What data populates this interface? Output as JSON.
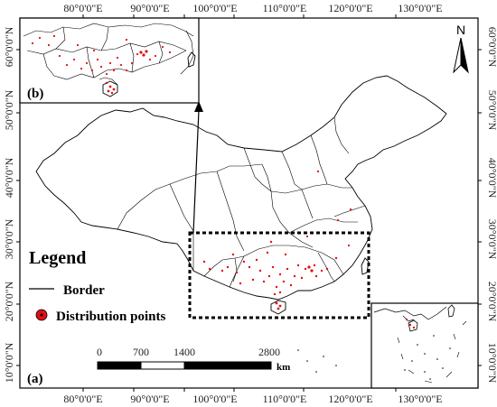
{
  "ticks": {
    "top": [
      "80°0'0\"E",
      "90°0'0\"E",
      "100°0'0\"E",
      "110°0'0\"E",
      "120°0'0\"E",
      "130°0'0\"E"
    ],
    "bottom": [
      "80°0'0\"E",
      "90°0'0\"E",
      "100°0'0\"E",
      "110°0'0\"E",
      "120°0'0\"E",
      "130°0'0\"E"
    ],
    "left": [
      "60°0'0\"N",
      "50°0'0\"N",
      "40°0'0\"N",
      "30°0'0\"N",
      "20°0'0\"N",
      "10°0'0\"N"
    ],
    "right": [
      "60°0'0\"N",
      "50°0'0\"N",
      "40°0'0\"N",
      "30°0'0\"N",
      "20°0'0\"N",
      "10°0'0\"N"
    ]
  },
  "legend": {
    "title": "Legend",
    "border_label": "Border",
    "points_label": "Distribution points"
  },
  "scalebar": {
    "labels": [
      "0",
      "700",
      "1400",
      "2800"
    ],
    "unit": "km"
  },
  "north_label": "N",
  "panel_a_label": "(a)",
  "panel_b_label": "(b)",
  "colors": {
    "points": "#e01010",
    "border": "#000000"
  }
}
